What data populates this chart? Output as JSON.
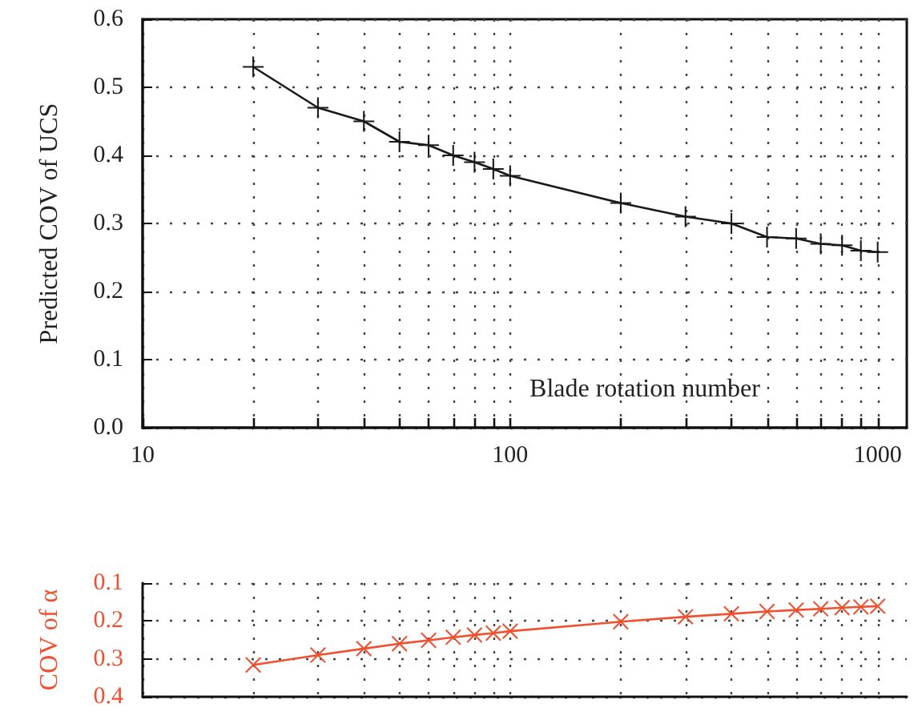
{
  "chart_data": [
    {
      "type": "line",
      "xlabel": "Blade rotation number",
      "ylabel": "Predicted COV of UCS",
      "log": "x",
      "marker": "cross",
      "grid": true,
      "x": [
        20,
        30,
        40,
        50,
        60,
        70,
        80,
        90,
        100,
        200,
        300,
        400,
        500,
        600,
        700,
        800,
        900,
        1000
      ],
      "series": [
        {
          "color": "#1a1a1a",
          "values": [
            0.53,
            0.47,
            0.45,
            0.42,
            0.415,
            0.4,
            0.39,
            0.38,
            0.37,
            0.33,
            0.31,
            0.3,
            0.28,
            0.278,
            0.27,
            0.268,
            0.26,
            0.258
          ]
        }
      ],
      "xlim": [
        10,
        1200
      ],
      "xticks": [
        10,
        {
          "value": 20,
          "label": null
        },
        {
          "value": 30,
          "label": null
        },
        {
          "value": 40,
          "label": null
        },
        {
          "value": 50,
          "label": null
        },
        {
          "value": 60,
          "label": null
        },
        {
          "value": 70,
          "label": null
        },
        {
          "value": 80,
          "label": null
        },
        {
          "value": 90,
          "label": null
        },
        100,
        {
          "value": 200,
          "label": null
        },
        {
          "value": 300,
          "label": null
        },
        {
          "value": 400,
          "label": null
        },
        {
          "value": 500,
          "label": null
        },
        {
          "value": 600,
          "label": null
        },
        {
          "value": 700,
          "label": null
        },
        {
          "value": 800,
          "label": null
        },
        {
          "value": 900,
          "label": null
        },
        1000
      ],
      "ylim": [
        0,
        0.6
      ],
      "yticks": [
        {
          "value": 0,
          "label": "0.0"
        },
        0.1,
        0.2,
        0.3,
        0.4,
        0.5,
        0.6
      ]
    },
    {
      "type": "line",
      "ylabel": "COV of α",
      "log": "x",
      "marker": "cross",
      "grid": true,
      "tick_labels": "y",
      "x": [
        20,
        30,
        40,
        50,
        60,
        70,
        80,
        90,
        100,
        200,
        300,
        400,
        500,
        600,
        700,
        800,
        900,
        1000
      ],
      "series": [
        {
          "color": "#f0502f",
          "values": [
            0.316,
            0.29,
            0.273,
            0.26,
            0.251,
            0.243,
            0.237,
            0.232,
            0.227,
            0.202,
            0.189,
            0.181,
            0.175,
            0.171,
            0.168,
            0.165,
            0.163,
            0.161
          ]
        }
      ],
      "xlim": [
        10,
        1200
      ],
      "xticks": [
        10,
        {
          "value": 20,
          "label": null
        },
        {
          "value": 30,
          "label": null
        },
        {
          "value": 40,
          "label": null
        },
        {
          "value": 50,
          "label": null
        },
        {
          "value": 60,
          "label": null
        },
        {
          "value": 70,
          "label": null
        },
        {
          "value": 80,
          "label": null
        },
        {
          "value": 90,
          "label": null
        },
        100,
        {
          "value": 200,
          "label": null
        },
        {
          "value": 300,
          "label": null
        },
        {
          "value": 400,
          "label": null
        },
        {
          "value": 500,
          "label": null
        },
        {
          "value": 600,
          "label": null
        },
        {
          "value": 700,
          "label": null
        },
        {
          "value": 800,
          "label": null
        },
        {
          "value": 900,
          "label": null
        },
        1000
      ],
      "ylim": [
        0.4,
        0.1
      ],
      "yticks": [
        0.1,
        0.2,
        0.3,
        0.4
      ]
    }
  ]
}
